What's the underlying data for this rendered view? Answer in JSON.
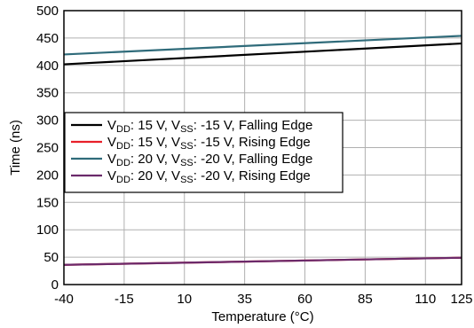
{
  "chart_data": {
    "type": "line",
    "title": "",
    "xlabel": "Temperature (°C)",
    "ylabel": "Time (ns)",
    "xlim": [
      -40,
      125
    ],
    "ylim": [
      0,
      500
    ],
    "xticks": [
      -40,
      -15,
      10,
      35,
      60,
      85,
      110,
      125
    ],
    "yticks": [
      0,
      50,
      100,
      150,
      200,
      250,
      300,
      350,
      400,
      450,
      500
    ],
    "grid": true,
    "legend_position": "center-left",
    "series": [
      {
        "name": "VDD: 15 V, VSS: -15 V, Falling Edge",
        "legend": {
          "a": "V",
          "a_sub": "DD",
          "b": ": 15 V, V",
          "b_sub": "SS",
          "c": ": -15 V, Falling Edge"
        },
        "color": "#000000",
        "x": [
          -40,
          125
        ],
        "y": [
          402,
          440
        ]
      },
      {
        "name": "VDD: 15 V, VSS: -15 V, Rising Edge",
        "legend": {
          "a": "V",
          "a_sub": "DD",
          "b": ": 15 V, V",
          "b_sub": "SS",
          "c": ": -15 V, Rising Edge"
        },
        "color": "#e8202a",
        "x": [
          -40,
          125
        ],
        "y": [
          36,
          49
        ]
      },
      {
        "name": "VDD: 20 V, VSS: -20 V, Falling Edge",
        "legend": {
          "a": "V",
          "a_sub": "DD",
          "b": ": 20 V, V",
          "b_sub": "SS",
          "c": ": -20 V, Falling Edge"
        },
        "color": "#2f6b7a",
        "x": [
          -40,
          125
        ],
        "y": [
          420,
          454
        ]
      },
      {
        "name": "VDD: 20 V, VSS: -20 V, Rising Edge",
        "legend": {
          "a": "V",
          "a_sub": "DD",
          "b": ": 20 V, V",
          "b_sub": "SS",
          "c": ": -20 V, Rising Edge"
        },
        "color": "#6b2a6b",
        "x": [
          -40,
          125
        ],
        "y": [
          36,
          49
        ]
      }
    ]
  }
}
